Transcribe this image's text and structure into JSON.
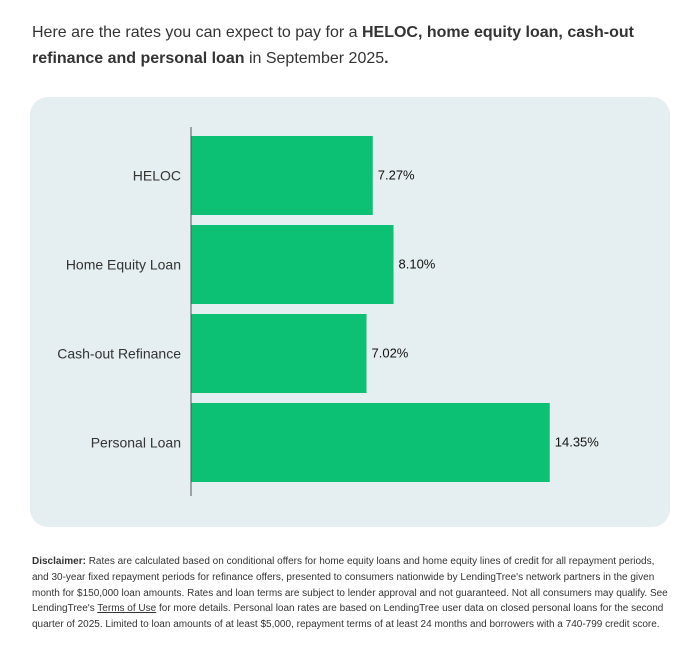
{
  "intro": {
    "part1": "Here are the rates you can expect to pay for a ",
    "bold1": "HELOC, home equity loan, cash-out refinance and personal loan",
    "part2": " in September 2025",
    "bold2": "."
  },
  "chart_data": {
    "type": "bar",
    "orientation": "horizontal",
    "categories": [
      "HELOC",
      "Home Equity Loan",
      "Cash-out Refinance",
      "Personal Loan"
    ],
    "values": [
      7.27,
      8.1,
      7.02,
      14.35
    ],
    "value_labels": [
      "7.27%",
      "8.10%",
      "7.02%",
      "14.35%"
    ],
    "xlim": [
      0,
      16
    ],
    "grid": false,
    "bar_color": "#0cc074",
    "axis_color": "#555555",
    "background_color": "#e5eef0"
  },
  "disclaimer": {
    "label": "Disclaimer:",
    "text1": " Rates are calculated based on conditional offers for home equity loans and home equity lines of credit for all repayment periods, and 30-year fixed repayment periods for refinance offers, presented to consumers nationwide by LendingTree's network partners in the given month for $150,000 loan amounts. Rates and loan terms are subject to lender approval and not guaranteed. Not all consumers may qualify. See LendingTree's ",
    "link": "Terms of Use",
    "text2": " for more details. Personal loan rates are based on LendingTree user data on closed personal loans for the second quarter of 2025. Limited to loan amounts of at least $5,000, repayment terms of at least 24 months and borrowers with a 740-799 credit score."
  }
}
